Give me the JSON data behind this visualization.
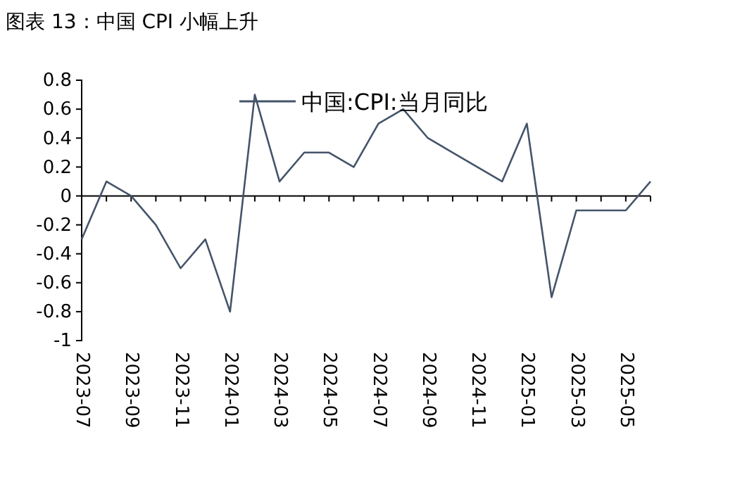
{
  "chart_data": {
    "type": "line",
    "title": "图表 13：中国 CPI 小幅上升",
    "categories": [
      "2023-07",
      null,
      "2023-09",
      null,
      "2023-11",
      null,
      "2024-01",
      null,
      "2024-03",
      null,
      "2024-05",
      null,
      "2024-07",
      null,
      "2024-09",
      null,
      "2024-11",
      null,
      "2025-01",
      null,
      "2025-03",
      null,
      "2025-05",
      null
    ],
    "series": [
      {
        "name": "中国:CPI:当月同比",
        "color": "#44546a",
        "values": [
          -0.3,
          0.1,
          0.0,
          -0.2,
          -0.5,
          -0.3,
          -0.8,
          0.7,
          0.1,
          0.3,
          0.3,
          0.2,
          0.5,
          0.6,
          0.4,
          0.3,
          0.2,
          0.1,
          0.5,
          -0.7,
          -0.1,
          -0.1,
          -0.1,
          0.1
        ]
      }
    ],
    "ylim": [
      -1,
      0.8
    ],
    "yticks": [
      -1,
      -0.8,
      -0.6,
      -0.4,
      -0.2,
      0,
      0.2,
      0.4,
      0.6,
      0.8
    ],
    "legend": "top",
    "marker": "none",
    "line_style": "solid"
  }
}
